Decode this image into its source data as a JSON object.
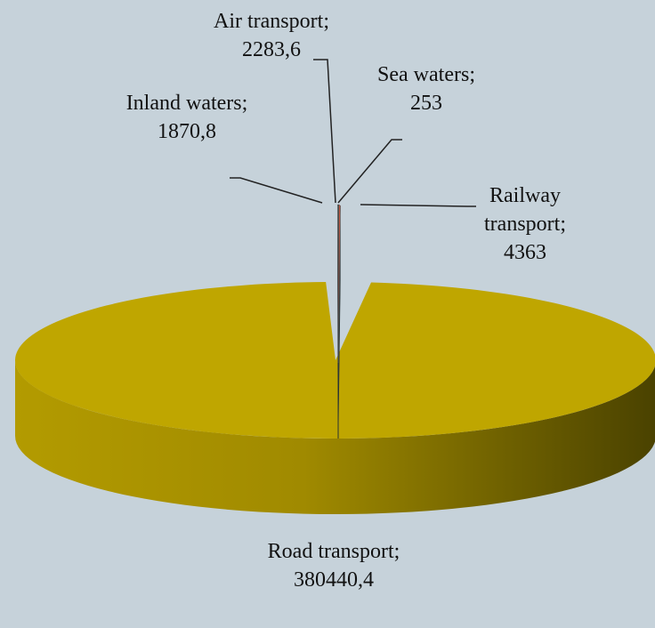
{
  "chart_data": {
    "type": "pie",
    "categories": [
      "Air transport",
      "Sea waters",
      "Railway transport",
      "Road transport",
      "Inland waters"
    ],
    "values": [
      2283.6,
      253,
      4363,
      380440.4,
      1870.8
    ],
    "value_labels": [
      "2283,6",
      "253",
      "4363",
      "380440,4",
      "1870,8"
    ],
    "label_separator": ";",
    "colors": [
      "#c9d9d2",
      "#e9ecea",
      "#c9573f",
      "#bfa600",
      "#8fa6a6"
    ]
  }
}
